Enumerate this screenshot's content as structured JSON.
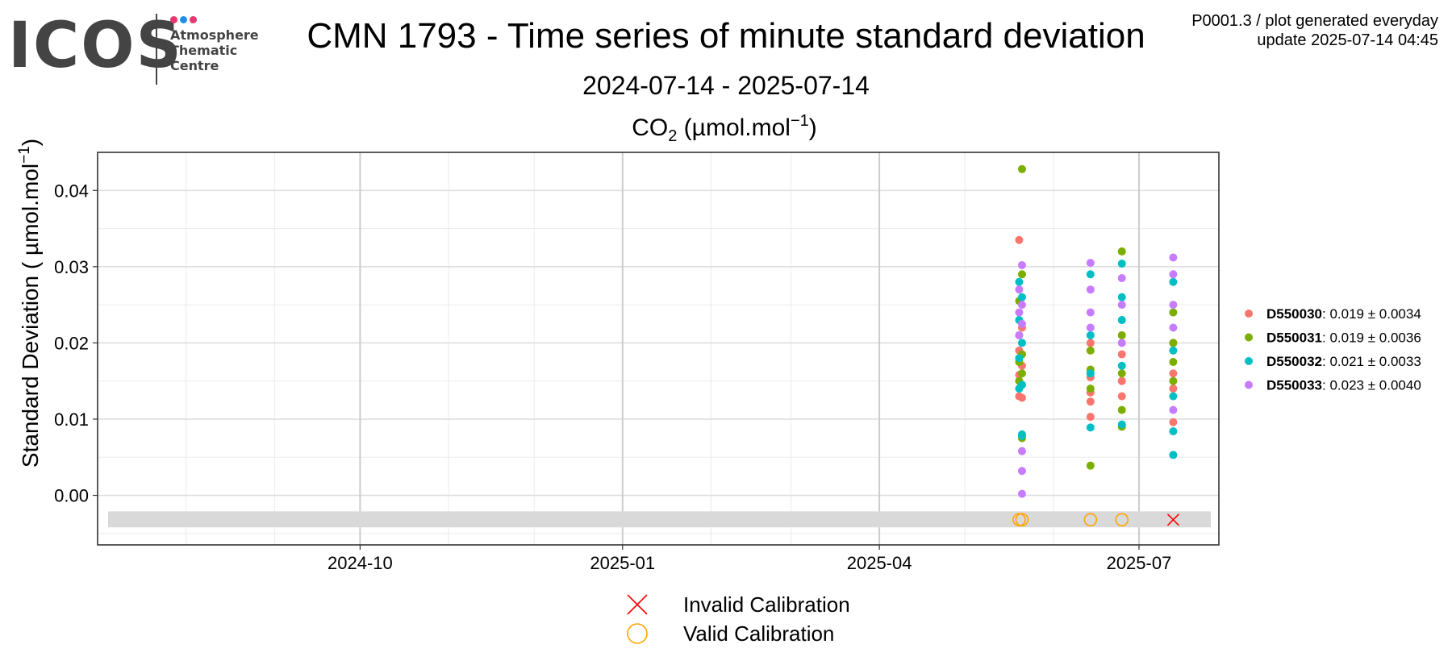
{
  "logo": {
    "word": "ICOS",
    "lines": [
      "Atmosphere",
      "Thematic",
      "Centre"
    ],
    "dot_colors": [
      "#e6356f",
      "#1e90e8",
      "#e6356f"
    ]
  },
  "header": {
    "title": "CMN 1793 - Time series of minute standard deviation",
    "subtitle": "2024-07-14 - 2025-07-14",
    "meta_line1": "P0001.3 / plot generated everyday",
    "meta_line2": "update  2025-07-14 04:45"
  },
  "chart_data": {
    "type": "scatter",
    "title": "CO2 (µmol.mol-1)",
    "ylabel": "Standard Deviation ( µmol.mol-1)",
    "xlabel": "",
    "x_range": [
      "2024-07-14",
      "2025-07-14"
    ],
    "ylim": [
      -0.0065,
      0.045
    ],
    "x_ticks": [
      "2024-10",
      "2025-01",
      "2025-04",
      "2025-07"
    ],
    "y_ticks": [
      "0.00",
      "0.01",
      "0.02",
      "0.03",
      "0.04"
    ],
    "grid": true,
    "legend_position": "right",
    "series": [
      {
        "name": "D550030",
        "label_suffix": ": 0.019 ± 0.0034",
        "color": "#F8766D",
        "points": [
          [
            "2025-05-20",
            0.0335
          ],
          [
            "2025-05-20",
            0.013
          ],
          [
            "2025-05-20",
            0.0158
          ],
          [
            "2025-05-20",
            0.019
          ],
          [
            "2025-05-21",
            0.0128
          ],
          [
            "2025-05-21",
            0.017
          ],
          [
            "2025-05-21",
            0.022
          ],
          [
            "2025-06-14",
            0.0103
          ],
          [
            "2025-06-14",
            0.0123
          ],
          [
            "2025-06-14",
            0.0135
          ],
          [
            "2025-06-14",
            0.0155
          ],
          [
            "2025-06-14",
            0.02
          ],
          [
            "2025-06-25",
            0.013
          ],
          [
            "2025-06-25",
            0.015
          ],
          [
            "2025-06-25",
            0.0185
          ],
          [
            "2025-07-13",
            0.0096
          ],
          [
            "2025-07-13",
            0.014
          ],
          [
            "2025-07-13",
            0.016
          ],
          [
            "2025-07-13",
            0.02
          ]
        ]
      },
      {
        "name": "D550031",
        "label_suffix": ": 0.019 ± 0.0036",
        "color": "#7CAE00",
        "points": [
          [
            "2025-05-20",
            0.015
          ],
          [
            "2025-05-20",
            0.0175
          ],
          [
            "2025-05-20",
            0.021
          ],
          [
            "2025-05-20",
            0.0255
          ],
          [
            "2025-05-21",
            0.0428
          ],
          [
            "2025-05-21",
            0.029
          ],
          [
            "2025-05-21",
            0.0075
          ],
          [
            "2025-05-21",
            0.016
          ],
          [
            "2025-05-21",
            0.0185
          ],
          [
            "2025-06-14",
            0.0039
          ],
          [
            "2025-06-14",
            0.014
          ],
          [
            "2025-06-14",
            0.0165
          ],
          [
            "2025-06-14",
            0.019
          ],
          [
            "2025-06-25",
            0.032
          ],
          [
            "2025-06-25",
            0.009
          ],
          [
            "2025-06-25",
            0.0112
          ],
          [
            "2025-06-25",
            0.016
          ],
          [
            "2025-06-25",
            0.021
          ],
          [
            "2025-07-13",
            0.015
          ],
          [
            "2025-07-13",
            0.0175
          ],
          [
            "2025-07-13",
            0.02
          ],
          [
            "2025-07-13",
            0.024
          ]
        ]
      },
      {
        "name": "D550032",
        "label_suffix": ": 0.021 ± 0.0033",
        "color": "#00BFC4",
        "points": [
          [
            "2025-05-20",
            0.014
          ],
          [
            "2025-05-20",
            0.018
          ],
          [
            "2025-05-20",
            0.023
          ],
          [
            "2025-05-20",
            0.028
          ],
          [
            "2025-05-21",
            0.008
          ],
          [
            "2025-05-21",
            0.0078
          ],
          [
            "2025-05-21",
            0.0145
          ],
          [
            "2025-05-21",
            0.02
          ],
          [
            "2025-05-21",
            0.026
          ],
          [
            "2025-06-14",
            0.0089
          ],
          [
            "2025-06-14",
            0.016
          ],
          [
            "2025-06-14",
            0.021
          ],
          [
            "2025-06-14",
            0.029
          ],
          [
            "2025-06-25",
            0.0304
          ],
          [
            "2025-06-25",
            0.0093
          ],
          [
            "2025-06-25",
            0.017
          ],
          [
            "2025-06-25",
            0.023
          ],
          [
            "2025-06-25",
            0.026
          ],
          [
            "2025-07-13",
            0.0053
          ],
          [
            "2025-07-13",
            0.0084
          ],
          [
            "2025-07-13",
            0.013
          ],
          [
            "2025-07-13",
            0.019
          ],
          [
            "2025-07-13",
            0.028
          ]
        ]
      },
      {
        "name": "D550033",
        "label_suffix": ": 0.023 ± 0.0040",
        "color": "#C77CFF",
        "points": [
          [
            "2025-05-20",
            0.027
          ],
          [
            "2025-05-20",
            0.024
          ],
          [
            "2025-05-20",
            0.021
          ],
          [
            "2025-05-21",
            0.0302
          ],
          [
            "2025-05-21",
            0.0058
          ],
          [
            "2025-05-21",
            0.0032
          ],
          [
            "2025-05-21",
            0.0002
          ],
          [
            "2025-05-21",
            0.025
          ],
          [
            "2025-05-21",
            0.0225
          ],
          [
            "2025-06-14",
            0.0305
          ],
          [
            "2025-06-14",
            0.027
          ],
          [
            "2025-06-14",
            0.024
          ],
          [
            "2025-06-14",
            0.022
          ],
          [
            "2025-06-25",
            0.0285
          ],
          [
            "2025-06-25",
            0.025
          ],
          [
            "2025-06-25",
            0.02
          ],
          [
            "2025-07-13",
            0.0312
          ],
          [
            "2025-07-13",
            0.0112
          ],
          [
            "2025-07-13",
            0.029
          ],
          [
            "2025-07-13",
            0.025
          ],
          [
            "2025-07-13",
            0.022
          ]
        ]
      }
    ],
    "calibration_band": {
      "y_from": -0.0042,
      "y_to": -0.0021,
      "color": "#d9d9d9"
    },
    "calibrations": [
      {
        "date": "2025-05-20",
        "status": "valid"
      },
      {
        "date": "2025-05-21",
        "status": "valid"
      },
      {
        "date": "2025-06-14",
        "status": "valid"
      },
      {
        "date": "2025-06-25",
        "status": "valid"
      },
      {
        "date": "2025-07-13",
        "status": "invalid"
      }
    ],
    "calibration_y": -0.0032,
    "calibration_legend": [
      {
        "label": "Invalid Calibration",
        "color": "#ff0000",
        "marker": "x"
      },
      {
        "label": "Valid Calibration",
        "color": "#ffa500",
        "marker": "circle"
      }
    ]
  }
}
